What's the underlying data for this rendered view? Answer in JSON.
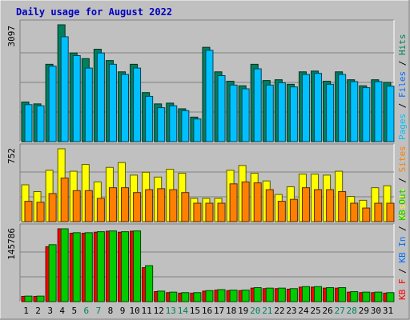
{
  "chart_data": [
    {
      "type": "bar",
      "title": "Daily usage for August 2022",
      "panel": "hits-files-pages",
      "x": [
        "1",
        "2",
        "3",
        "4",
        "5",
        "6",
        "7",
        "8",
        "9",
        "10",
        "11",
        "12",
        "13",
        "14",
        "15",
        "16",
        "17",
        "18",
        "19",
        "20",
        "21",
        "22",
        "23",
        "24",
        "25",
        "26",
        "27",
        "28",
        "29",
        "30",
        "31"
      ],
      "weekend_days": [
        "6",
        "7",
        "13",
        "14",
        "20",
        "21",
        "27",
        "28"
      ],
      "ytick": "3097",
      "ylim": [
        0,
        3097
      ],
      "legend": [
        {
          "label": "Pages",
          "color": "#00c0ff"
        },
        {
          "label": "Files",
          "color": "#0070ff"
        },
        {
          "label": "Hits",
          "color": "#00805c"
        }
      ],
      "separator": "/",
      "series": [
        {
          "name": "Hits",
          "color": "#00805c",
          "values": [
            1050,
            1000,
            2050,
            3097,
            2350,
            2200,
            2450,
            2150,
            1850,
            2050,
            1300,
            1000,
            1020,
            870,
            650,
            2500,
            1850,
            1600,
            1480,
            2050,
            1620,
            1640,
            1520,
            1850,
            1870,
            1600,
            1850,
            1640,
            1480,
            1640,
            1570
          ]
        },
        {
          "name": "Files",
          "color": "#00c0ff",
          "values": [
            980,
            950,
            2000,
            2780,
            2280,
            1950,
            2350,
            2050,
            1780,
            1950,
            1200,
            900,
            950,
            820,
            600,
            2420,
            1750,
            1500,
            1400,
            1930,
            1500,
            1560,
            1450,
            1780,
            1810,
            1520,
            1780,
            1590,
            1430,
            1590,
            1470
          ]
        }
      ]
    },
    {
      "type": "bar",
      "panel": "visits-sites",
      "x": [
        "1",
        "2",
        "3",
        "4",
        "5",
        "6",
        "7",
        "8",
        "9",
        "10",
        "11",
        "12",
        "13",
        "14",
        "15",
        "16",
        "17",
        "18",
        "19",
        "20",
        "21",
        "22",
        "23",
        "24",
        "25",
        "26",
        "27",
        "28",
        "29",
        "30",
        "31"
      ],
      "ytick": "752",
      "ylim": [
        0,
        752
      ],
      "legend": [
        {
          "label": "Visits",
          "color": "#ffff00"
        },
        {
          "label": "Sites",
          "color": "#ff8000"
        }
      ],
      "separator": "/",
      "series": [
        {
          "name": "Visits",
          "color": "#ffff00",
          "values": [
            380,
            310,
            530,
            752,
            520,
            590,
            410,
            560,
            610,
            480,
            510,
            460,
            540,
            500,
            240,
            240,
            240,
            530,
            580,
            500,
            420,
            280,
            360,
            490,
            490,
            480,
            520,
            260,
            220,
            350,
            370
          ]
        },
        {
          "name": "Sites",
          "color": "#ff8000",
          "values": [
            210,
            200,
            290,
            450,
            320,
            320,
            240,
            350,
            350,
            300,
            330,
            340,
            330,
            300,
            190,
            190,
            190,
            390,
            410,
            400,
            330,
            210,
            230,
            350,
            330,
            330,
            310,
            190,
            140,
            190,
            190
          ]
        }
      ]
    },
    {
      "type": "bar",
      "panel": "kbytes",
      "x": [
        "1",
        "2",
        "3",
        "4",
        "5",
        "6",
        "7",
        "8",
        "9",
        "10",
        "11",
        "12",
        "13",
        "14",
        "15",
        "16",
        "17",
        "18",
        "19",
        "20",
        "21",
        "22",
        "23",
        "24",
        "25",
        "26",
        "27",
        "28",
        "29",
        "30",
        "31"
      ],
      "ytick": "145786",
      "ylim": [
        0,
        145786
      ],
      "legend": [
        {
          "label": "KB F",
          "color": "#ff0000"
        },
        {
          "label": "KB In",
          "color": "#0070ff"
        },
        {
          "label": "KB Out",
          "color": "#00cc00"
        }
      ],
      "separator": "/",
      "series": [
        {
          "name": "KB F",
          "color": "#ff0000",
          "values": [
            10500,
            10500,
            110000,
            145786,
            137000,
            137000,
            139000,
            141000,
            139000,
            141000,
            68000,
            20000,
            18000,
            17000,
            17000,
            21000,
            23000,
            22000,
            22000,
            27000,
            26000,
            26000,
            25000,
            29000,
            29000,
            27000,
            27000,
            19000,
            18000,
            18000,
            17000
          ]
        },
        {
          "name": "KB Out",
          "color": "#00cc00",
          "values": [
            11000,
            11000,
            114000,
            145786,
            138000,
            138000,
            140000,
            141500,
            140000,
            141500,
            72000,
            21000,
            19000,
            18000,
            18000,
            22000,
            24000,
            23000,
            23000,
            28000,
            27000,
            27000,
            26000,
            30000,
            30000,
            28000,
            28000,
            20000,
            19000,
            19000,
            18000
          ]
        }
      ]
    }
  ]
}
